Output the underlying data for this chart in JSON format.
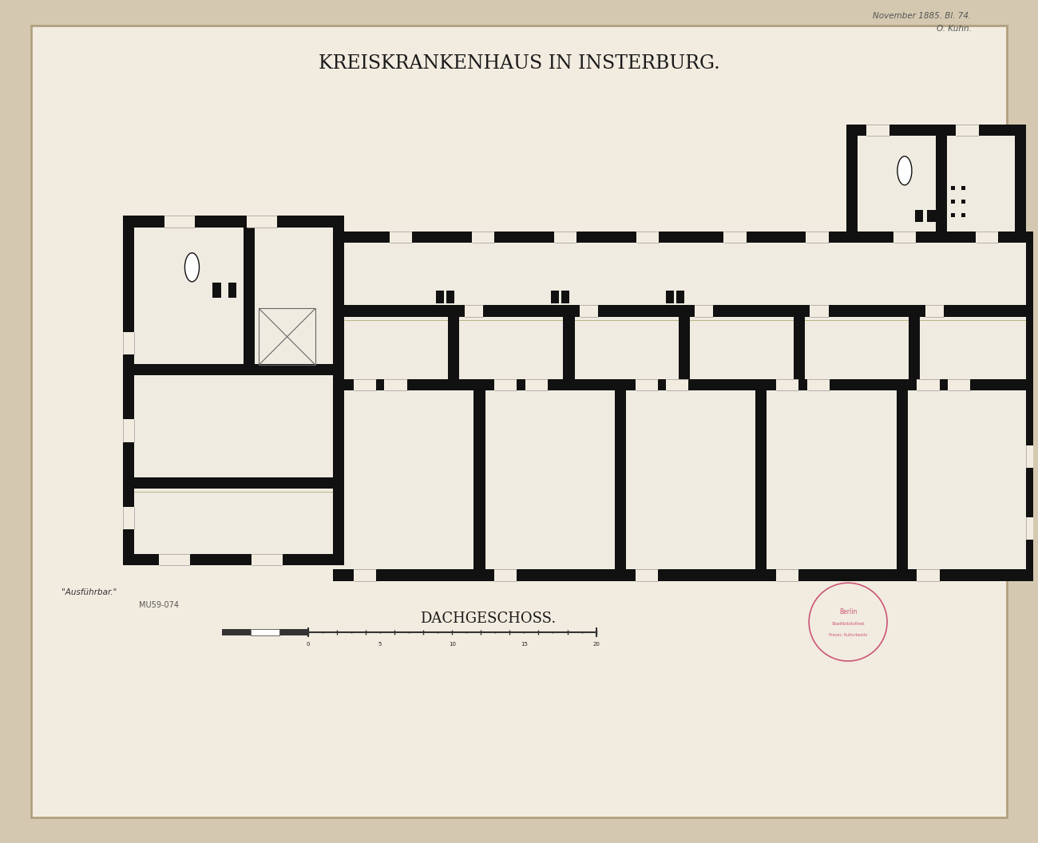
{
  "background_color": "#d4c9b0",
  "paper_color": "#f2ece0",
  "border_color": "#b0a080",
  "wall_color": "#111111",
  "floor_color": "#f0ebe0",
  "title": "KREISKRANKENHAUS IN INSTERBURG.",
  "subtitle": "DACHGESCHOSS.",
  "top_right_text1": "November 1885. Bl. 74.",
  "top_right_text2": "O. Kuhn.",
  "bottom_left_text1": "\"Ausführbar.\"",
  "bottom_left_text2": "MU59-074",
  "title_fontsize": 17,
  "subtitle_fontsize": 13,
  "annotation_fontsize": 7.5
}
